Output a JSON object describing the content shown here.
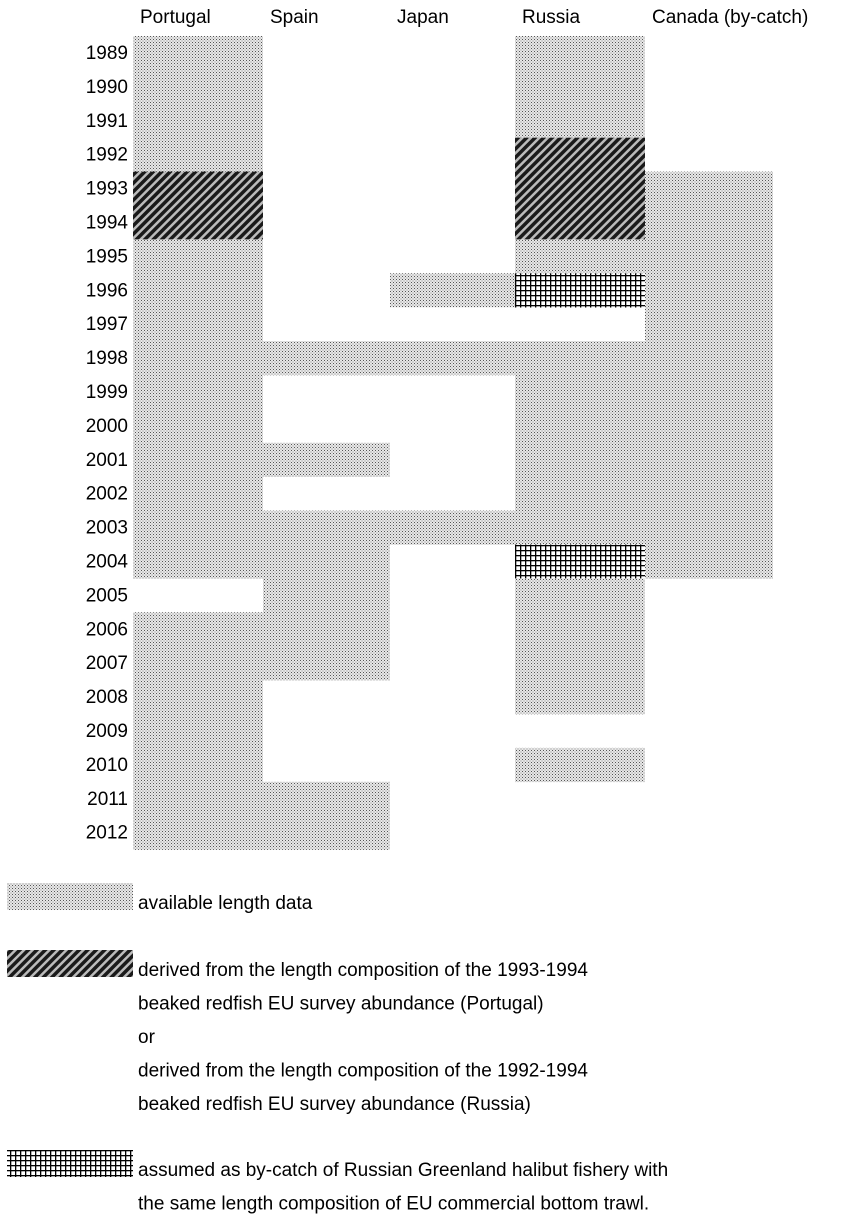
{
  "columns": [
    "Portugal",
    "Spain",
    "Japan",
    "Russia",
    "Canada (by-catch)"
  ],
  "years": [
    "1989",
    "1990",
    "1991",
    "1992",
    "1993",
    "1994",
    "1995",
    "1996",
    "1997",
    "1998",
    "1999",
    "2000",
    "2001",
    "2002",
    "2003",
    "2004",
    "2005",
    "2006",
    "2007",
    "2008",
    "2009",
    "2010",
    "2011",
    "2012"
  ],
  "cells": [
    [
      "dots",
      null,
      null,
      "dots",
      null
    ],
    [
      "dots",
      null,
      null,
      "dots",
      null
    ],
    [
      "dots",
      null,
      null,
      "dots",
      null
    ],
    [
      "dots",
      null,
      null,
      "hatch",
      null
    ],
    [
      "hatch",
      null,
      null,
      "hatch",
      "dots"
    ],
    [
      "hatch",
      null,
      null,
      "hatch",
      "dots"
    ],
    [
      "dots",
      null,
      null,
      "dots",
      "dots"
    ],
    [
      "dots",
      null,
      "dots",
      "grid",
      "dots"
    ],
    [
      "dots",
      null,
      null,
      null,
      "dots"
    ],
    [
      "dots",
      "dots",
      "dots",
      "dots",
      "dots"
    ],
    [
      "dots",
      null,
      null,
      "dots",
      "dots"
    ],
    [
      "dots",
      null,
      null,
      "dots",
      "dots"
    ],
    [
      "dots",
      "dots",
      null,
      "dots",
      "dots"
    ],
    [
      "dots",
      null,
      null,
      "dots",
      "dots"
    ],
    [
      "dots",
      "dots",
      "dots",
      "dots",
      "dots"
    ],
    [
      "dots",
      "dots",
      null,
      "grid",
      "dots"
    ],
    [
      null,
      "dots",
      null,
      "dots",
      null
    ],
    [
      "dots",
      "dots",
      null,
      "dots",
      null
    ],
    [
      "dots",
      "dots",
      null,
      "dots",
      null
    ],
    [
      "dots",
      null,
      null,
      "dots",
      null
    ],
    [
      "dots",
      null,
      null,
      null,
      null
    ],
    [
      "dots",
      null,
      null,
      "dots",
      null
    ],
    [
      "dots",
      "dots",
      null,
      null,
      null
    ],
    [
      "dots",
      "dots",
      null,
      null,
      null
    ]
  ],
  "legend": [
    {
      "pattern": "dots",
      "lines": [
        "available length data"
      ]
    },
    {
      "pattern": "hatch",
      "lines": [
        "derived from the length composition of the 1993-1994",
        "beaked redfish EU survey abundance (Portugal)",
        "or",
        "derived from the length composition of the 1992-1994",
        "beaked redfish EU survey abundance (Russia)"
      ]
    },
    {
      "pattern": "grid",
      "lines": [
        "assumed as by-catch of Russian Greenland halibut fishery with",
        "the same length composition of EU commercial bottom trawl."
      ]
    }
  ]
}
